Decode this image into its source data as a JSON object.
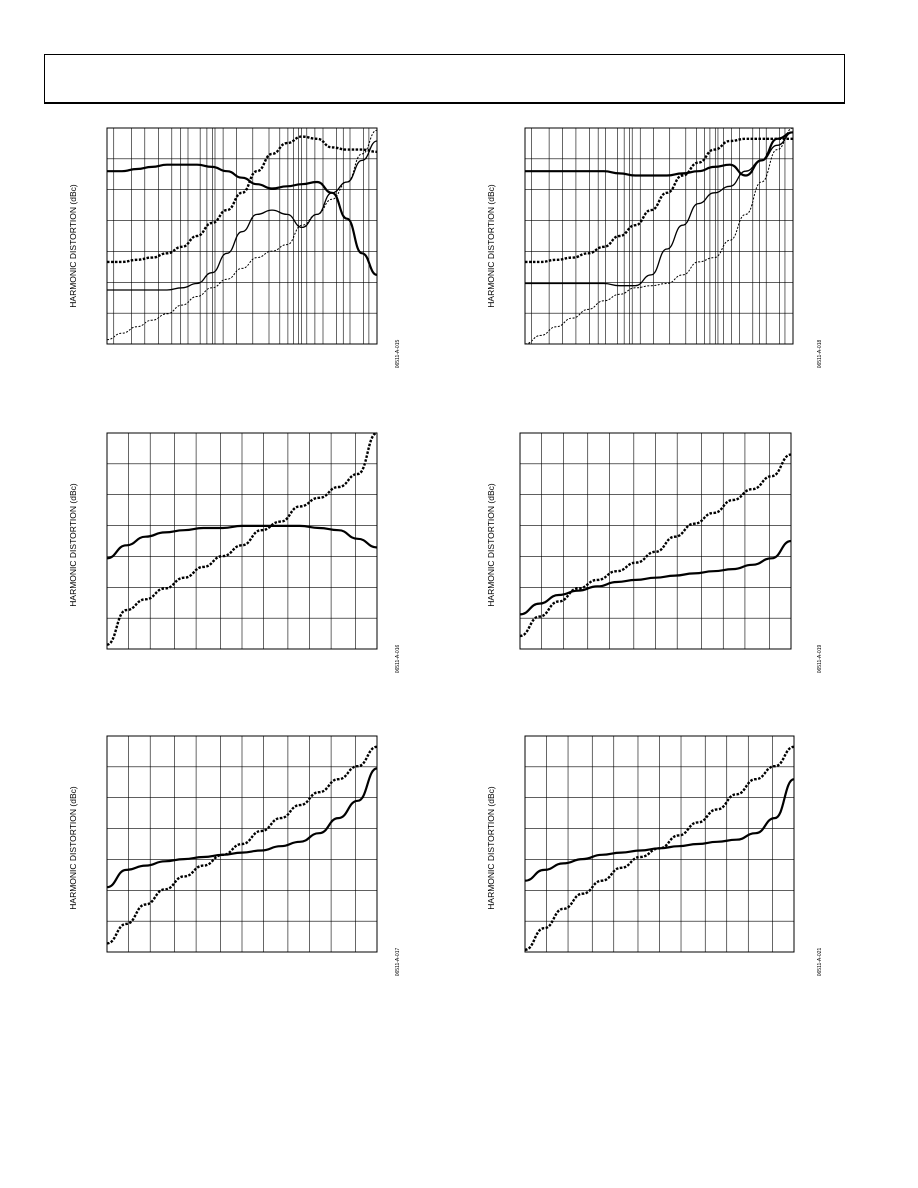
{
  "colors": {
    "line": "#000000",
    "grid": "#000000",
    "background": "#ffffff"
  },
  "chart_data": [
    {
      "type": "line",
      "ylabel": "HARMONIC DISTORTION (dBc)",
      "figure_id": "06511-A-015",
      "xscale": "log",
      "grid": "on",
      "series": [
        {
          "style": "solid-thick",
          "values": [
            0.2,
            0.2,
            0.19,
            0.18,
            0.17,
            0.17,
            0.17,
            0.18,
            0.2,
            0.23,
            0.26,
            0.28,
            0.27,
            0.26,
            0.25,
            0.3,
            0.42,
            0.58,
            0.68
          ]
        },
        {
          "style": "dashed-thick",
          "values": [
            0.62,
            0.62,
            0.61,
            0.6,
            0.58,
            0.55,
            0.5,
            0.44,
            0.38,
            0.3,
            0.2,
            0.12,
            0.07,
            0.04,
            0.05,
            0.09,
            0.1,
            0.1,
            0.11
          ]
        },
        {
          "style": "solid-thin",
          "values": [
            0.75,
            0.75,
            0.75,
            0.75,
            0.75,
            0.74,
            0.72,
            0.67,
            0.58,
            0.48,
            0.4,
            0.38,
            0.4,
            0.46,
            0.4,
            0.3,
            0.25,
            0.15,
            0.06
          ]
        },
        {
          "style": "dashed-thin",
          "values": [
            0.98,
            0.95,
            0.92,
            0.89,
            0.86,
            0.82,
            0.78,
            0.74,
            0.7,
            0.65,
            0.6,
            0.57,
            0.54,
            0.45,
            0.4,
            0.33,
            0.25,
            0.12,
            0.01
          ]
        }
      ],
      "vgrid": [
        0.025,
        0.09,
        0.14,
        0.19,
        0.24,
        0.273,
        0.3,
        0.345,
        0.37,
        0.39,
        0.4,
        0.43,
        0.48,
        0.54,
        0.6,
        0.64,
        0.67,
        0.69,
        0.71,
        0.72,
        0.74,
        0.77,
        0.8,
        0.85,
        0.875,
        0.9,
        0.95,
        0.97
      ]
    },
    {
      "type": "line",
      "ylabel": "HARMONIC DISTORTION (dBc)",
      "figure_id": "06511-A-018",
      "xscale": "log",
      "grid": "on",
      "series": [
        {
          "style": "solid-thick",
          "values": [
            0.2,
            0.2,
            0.2,
            0.2,
            0.2,
            0.2,
            0.21,
            0.22,
            0.22,
            0.22,
            0.21,
            0.2,
            0.18,
            0.17,
            0.22,
            0.15,
            0.05,
            0.02
          ]
        },
        {
          "style": "dashed-thick",
          "values": [
            0.62,
            0.62,
            0.61,
            0.6,
            0.58,
            0.55,
            0.5,
            0.45,
            0.38,
            0.3,
            0.22,
            0.16,
            0.1,
            0.06,
            0.05,
            0.05,
            0.05,
            0.05
          ]
        },
        {
          "style": "solid-thin",
          "values": [
            0.72,
            0.72,
            0.72,
            0.72,
            0.72,
            0.72,
            0.73,
            0.73,
            0.68,
            0.56,
            0.45,
            0.35,
            0.3,
            0.27,
            0.2,
            0.15,
            0.08,
            0.02
          ]
        },
        {
          "style": "dashed-thin",
          "values": [
            1.0,
            0.96,
            0.92,
            0.88,
            0.84,
            0.8,
            0.77,
            0.74,
            0.73,
            0.72,
            0.68,
            0.62,
            0.6,
            0.52,
            0.4,
            0.25,
            0.1,
            0.0
          ]
        }
      ],
      "vgrid": [
        0.025,
        0.09,
        0.14,
        0.19,
        0.24,
        0.273,
        0.3,
        0.345,
        0.37,
        0.39,
        0.4,
        0.43,
        0.48,
        0.54,
        0.6,
        0.64,
        0.67,
        0.69,
        0.71,
        0.72,
        0.74,
        0.77,
        0.8,
        0.85,
        0.875,
        0.9,
        0.95,
        0.97
      ]
    },
    {
      "type": "line",
      "ylabel": "HARMONIC DISTORTION (dBc)",
      "figure_id": "06511-A-016",
      "xscale": "linear",
      "grid": "on",
      "series": [
        {
          "style": "solid-thick",
          "values": [
            0.58,
            0.52,
            0.48,
            0.46,
            0.45,
            0.44,
            0.44,
            0.43,
            0.43,
            0.43,
            0.43,
            0.44,
            0.45,
            0.49,
            0.53
          ]
        },
        {
          "style": "dashed-thick",
          "values": [
            0.98,
            0.82,
            0.77,
            0.72,
            0.67,
            0.62,
            0.57,
            0.52,
            0.45,
            0.41,
            0.34,
            0.3,
            0.25,
            0.19,
            0.0
          ]
        }
      ],
      "vgrid": [
        0.08,
        0.16,
        0.25,
        0.33,
        0.42,
        0.5,
        0.58,
        0.67,
        0.75,
        0.83,
        0.92
      ]
    },
    {
      "type": "line",
      "ylabel": "HARMONIC DISTORTION (dBc)",
      "figure_id": "06511-A-019",
      "xscale": "linear",
      "grid": "on",
      "series": [
        {
          "style": "solid-thick",
          "values": [
            0.84,
            0.79,
            0.75,
            0.73,
            0.71,
            0.69,
            0.68,
            0.67,
            0.66,
            0.65,
            0.64,
            0.63,
            0.61,
            0.58,
            0.5
          ]
        },
        {
          "style": "dashed-thick",
          "values": [
            0.94,
            0.85,
            0.78,
            0.72,
            0.68,
            0.64,
            0.6,
            0.55,
            0.48,
            0.42,
            0.37,
            0.31,
            0.26,
            0.2,
            0.1
          ]
        }
      ],
      "vgrid": [
        0.08,
        0.16,
        0.25,
        0.33,
        0.42,
        0.5,
        0.58,
        0.67,
        0.75,
        0.83,
        0.92
      ]
    },
    {
      "type": "line",
      "ylabel": "HARMONIC DISTORTION (dBc)",
      "figure_id": "06511-A-017",
      "xscale": "linear",
      "grid": "on",
      "series": [
        {
          "style": "solid-thick",
          "values": [
            0.7,
            0.62,
            0.6,
            0.58,
            0.57,
            0.56,
            0.55,
            0.54,
            0.53,
            0.51,
            0.49,
            0.45,
            0.38,
            0.3,
            0.15
          ]
        },
        {
          "style": "dashed-thick",
          "values": [
            0.96,
            0.87,
            0.78,
            0.71,
            0.65,
            0.6,
            0.55,
            0.5,
            0.44,
            0.38,
            0.32,
            0.26,
            0.2,
            0.14,
            0.05
          ]
        }
      ],
      "vgrid": [
        0.08,
        0.16,
        0.25,
        0.33,
        0.42,
        0.5,
        0.58,
        0.67,
        0.75,
        0.83,
        0.92
      ]
    },
    {
      "type": "line",
      "ylabel": "HARMONIC DISTORTION (dBc)",
      "figure_id": "06511-A-021",
      "xscale": "linear",
      "grid": "on",
      "series": [
        {
          "style": "solid-thick",
          "values": [
            0.67,
            0.62,
            0.59,
            0.57,
            0.55,
            0.54,
            0.53,
            0.52,
            0.51,
            0.5,
            0.49,
            0.48,
            0.45,
            0.38,
            0.2
          ]
        },
        {
          "style": "dashed-thick",
          "values": [
            0.99,
            0.89,
            0.8,
            0.73,
            0.67,
            0.61,
            0.56,
            0.52,
            0.46,
            0.4,
            0.34,
            0.27,
            0.2,
            0.14,
            0.05
          ]
        }
      ],
      "vgrid": [
        0.08,
        0.16,
        0.25,
        0.33,
        0.42,
        0.5,
        0.58,
        0.67,
        0.75,
        0.83,
        0.92
      ]
    }
  ]
}
